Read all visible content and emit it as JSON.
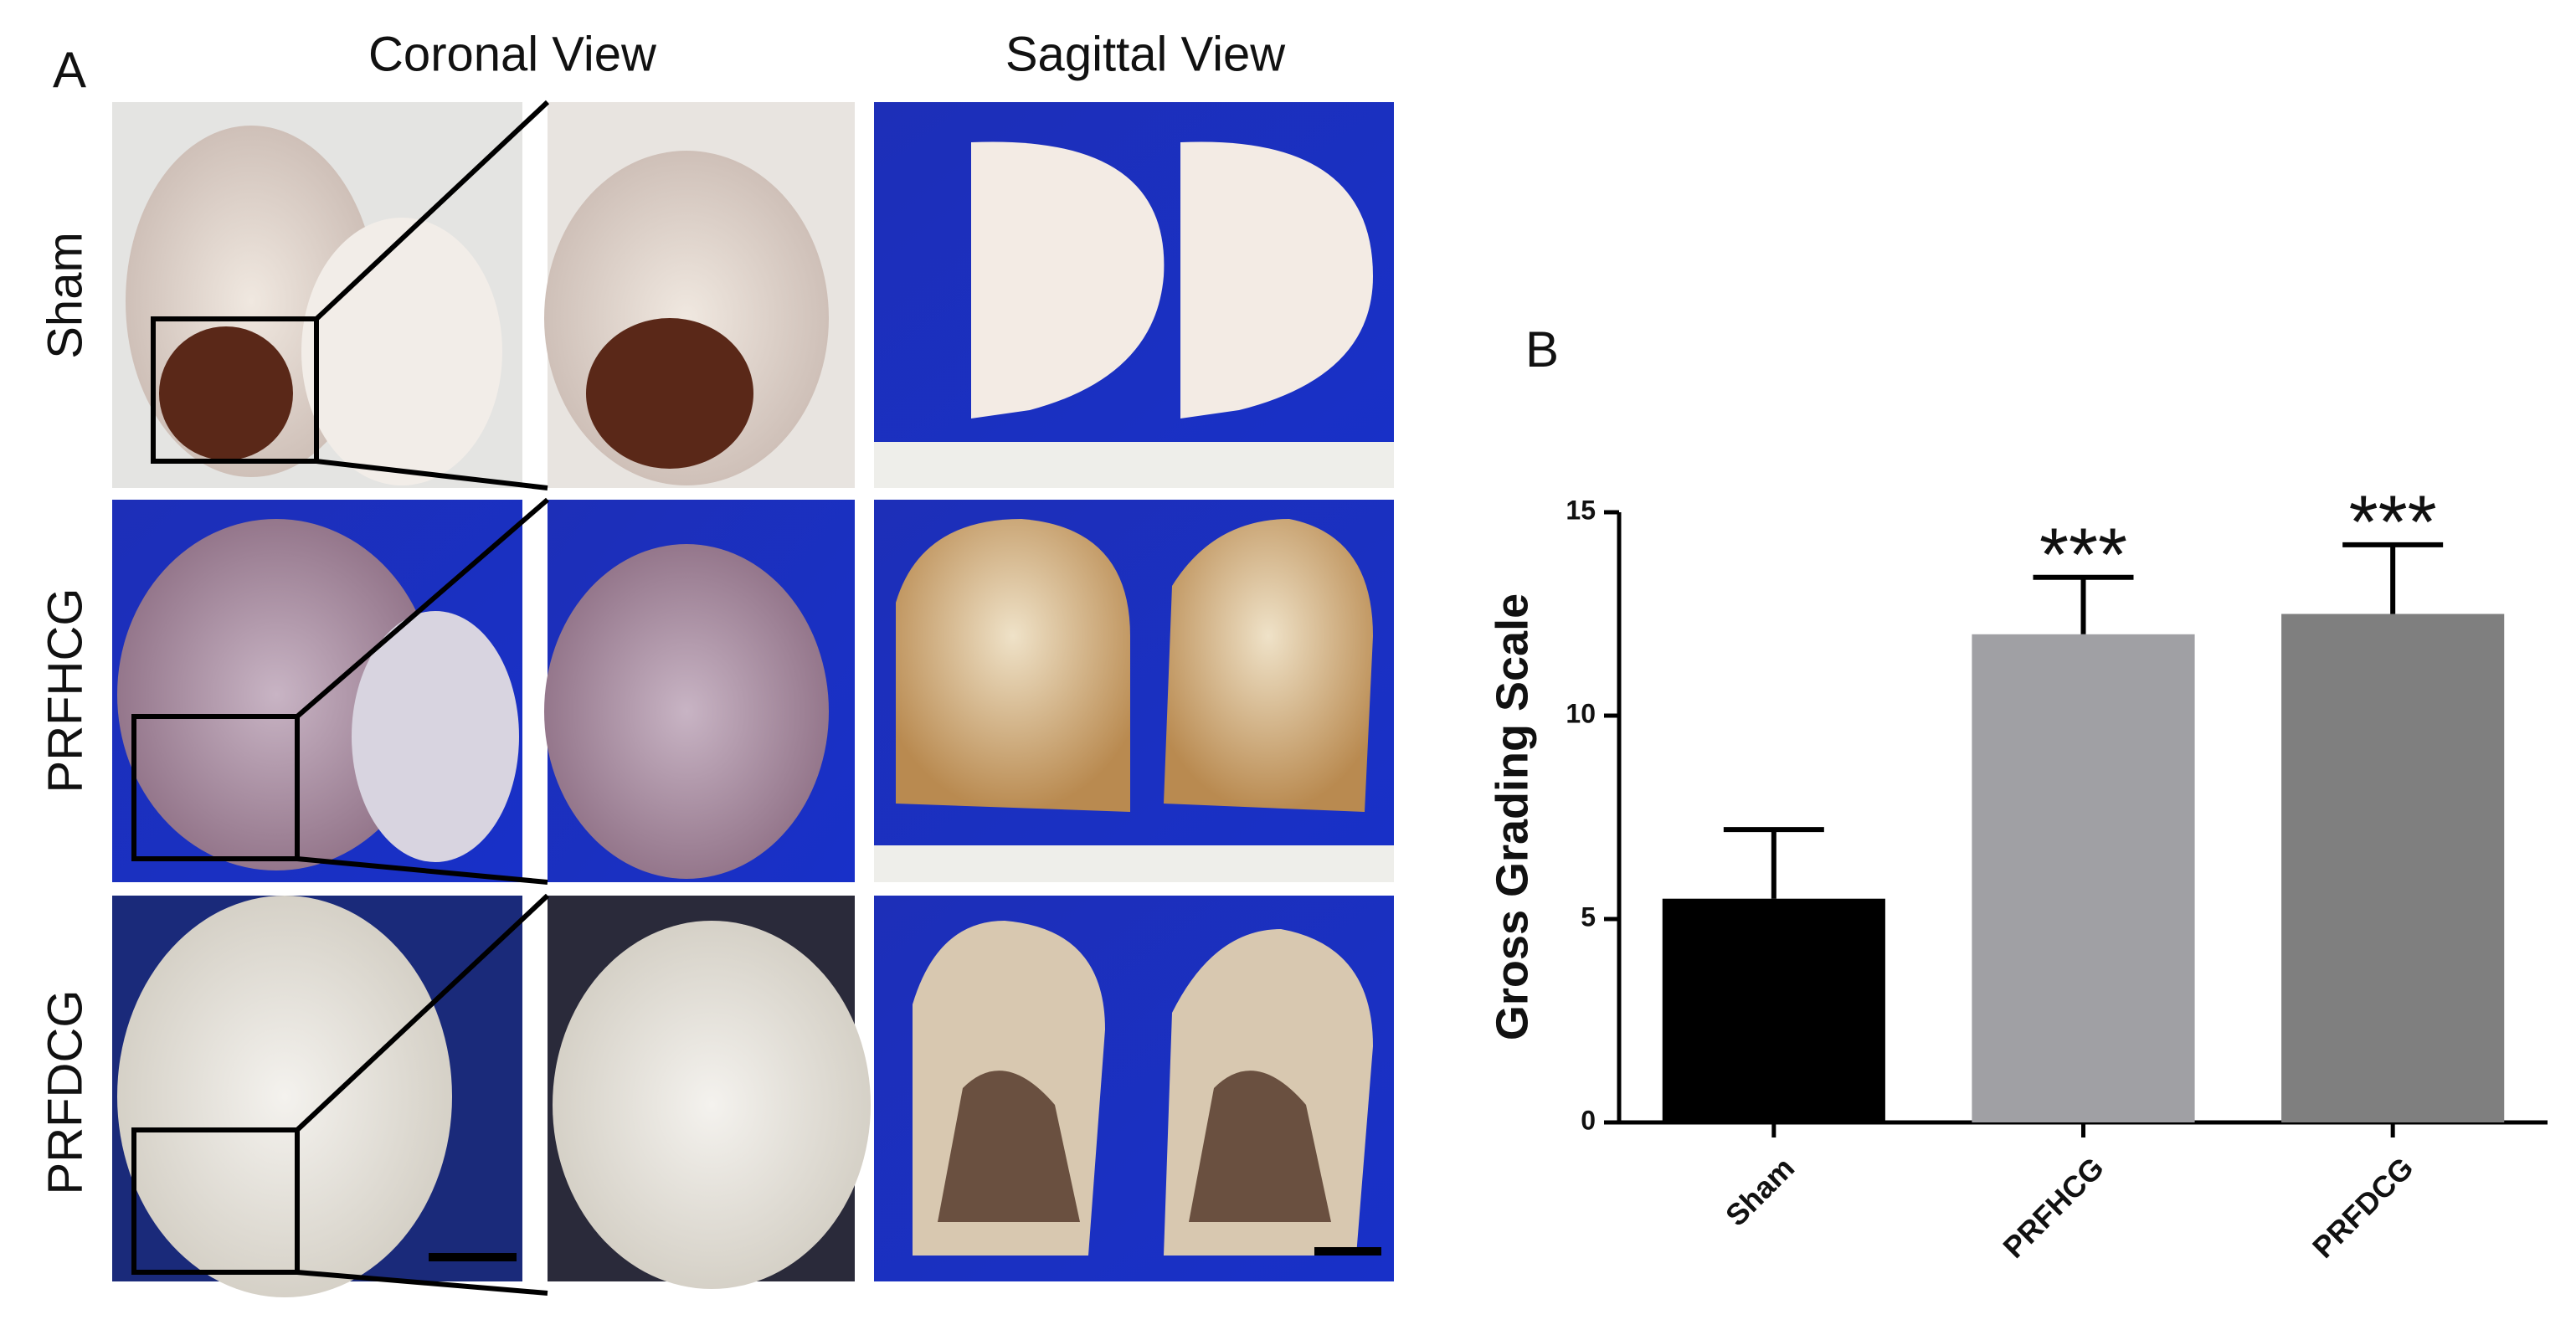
{
  "panel_a": {
    "label": "A",
    "column_titles": [
      "Coronal View",
      "Sagittal View"
    ],
    "row_labels": [
      "Sham",
      "PRFHCG",
      "PRFDCG"
    ]
  },
  "chart_data": {
    "type": "bar",
    "panel_label": "B",
    "ylabel": "Gross Grading Scale",
    "categories": [
      "Sham",
      "PRFHCG",
      "PRFDCG"
    ],
    "values": [
      5.5,
      12,
      12.5
    ],
    "errors": [
      1.7,
      1.4,
      1.7
    ],
    "colors": [
      "#000000",
      "#a0a0a4",
      "#7f7f7f"
    ],
    "significance": [
      null,
      "***",
      "***"
    ],
    "ylim": [
      0,
      15
    ],
    "yticks": [
      0,
      5,
      10,
      15
    ]
  }
}
